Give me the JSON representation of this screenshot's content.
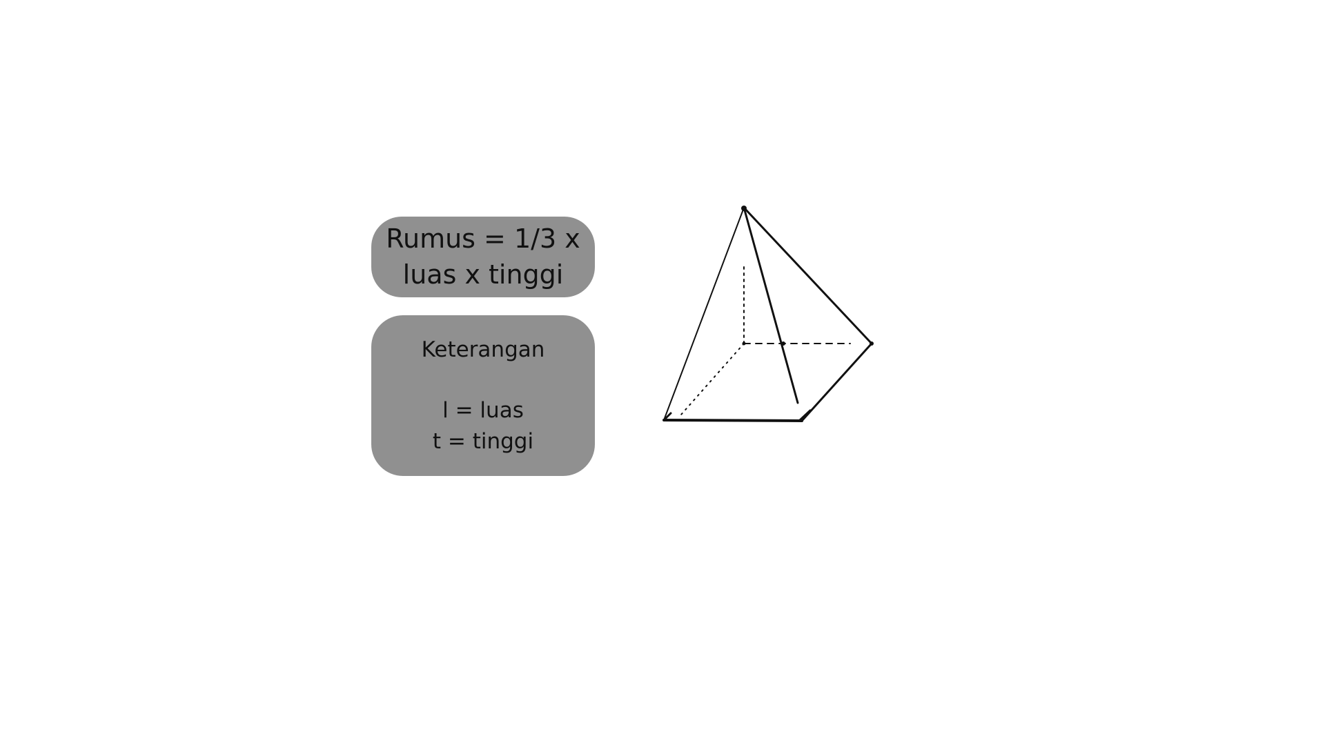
{
  "formula": {
    "line1": "Rumus = 1/3 x",
    "line2": "luas x tinggi"
  },
  "legend": {
    "title": "Keterangan",
    "items": [
      "l = luas",
      "t = tinggi"
    ]
  },
  "colors": {
    "card_background": "#909090",
    "text": "#111111",
    "page_background": "#ffffff"
  }
}
